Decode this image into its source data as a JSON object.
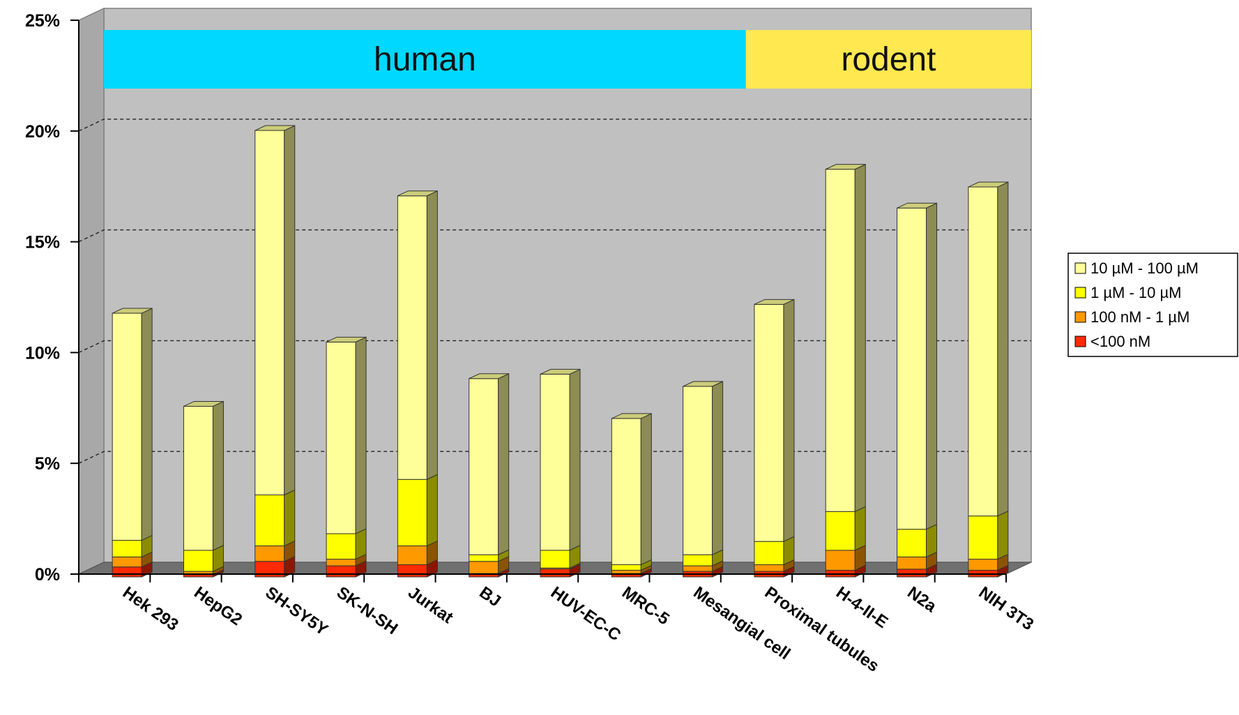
{
  "chart_data": {
    "type": "bar",
    "stacked": true,
    "three_d": true,
    "categories": [
      "Hek 293",
      "HepG2",
      "SH-SY5Y",
      "SK-N-SH",
      "Jurkat",
      "BJ",
      "HUV-EC-C",
      "MRC-5",
      "Mesangial cell",
      "Proximal tubules",
      "H-4-II-E",
      "N2a",
      "NIH 3T3"
    ],
    "series": [
      {
        "name": "<100 nM",
        "color": "#ff2a00",
        "values": [
          0.45,
          0.1,
          0.7,
          0.5,
          0.55,
          0.15,
          0.35,
          0.15,
          0.25,
          0.25,
          0.3,
          0.35,
          0.3
        ]
      },
      {
        "name": "100 nM - 1 µM",
        "color": "#ff9900",
        "values": [
          0.45,
          0.15,
          0.7,
          0.3,
          0.85,
          0.55,
          0.05,
          0.15,
          0.25,
          0.3,
          0.9,
          0.55,
          0.5
        ]
      },
      {
        "name": "1 µM - 10 µM",
        "color": "#ffff00",
        "values": [
          0.75,
          0.95,
          2.3,
          1.15,
          3.0,
          0.3,
          0.8,
          0.25,
          0.5,
          1.05,
          1.75,
          1.25,
          1.95
        ]
      },
      {
        "name": "10 µM - 100 µM",
        "color": "#ffff99",
        "values": [
          10.25,
          6.5,
          16.45,
          8.65,
          12.8,
          7.95,
          7.95,
          6.6,
          7.6,
          10.7,
          15.45,
          14.5,
          14.85
        ]
      }
    ],
    "y_ticks": [
      "0%",
      "5%",
      "10%",
      "15%",
      "20%",
      "25%"
    ],
    "ylim": [
      0,
      25
    ],
    "grid": true,
    "legend_position": "right",
    "groups": [
      {
        "label": "human",
        "color": "#00d8ff",
        "from": 0,
        "to": 8
      },
      {
        "label": "rodent",
        "color": "#ffe850",
        "from": 9,
        "to": 12
      }
    ],
    "wall_color": "#c0c0c0",
    "floor_color": "#707070"
  }
}
